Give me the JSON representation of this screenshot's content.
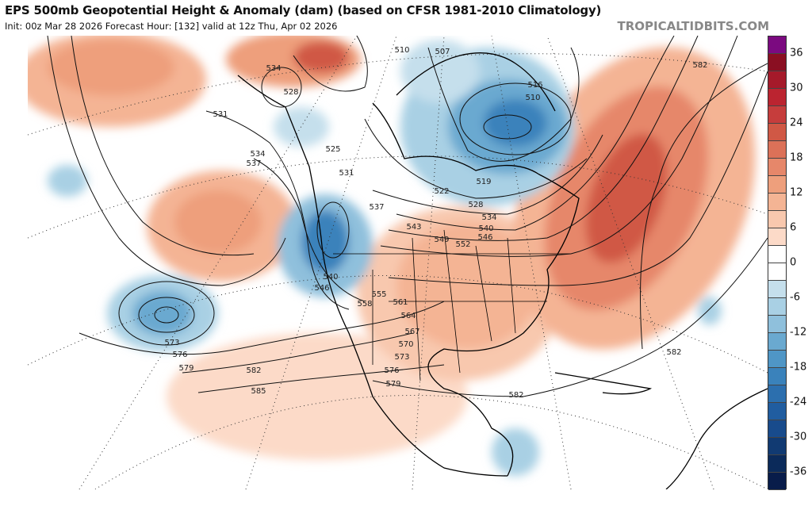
{
  "header": {
    "title": "EPS 500mb Geopotential Height & Anomaly (dam) (based on CFSR 1981-2010 Climatology)",
    "subtitle": "Init: 00z Mar 28 2026   Forecast Hour: [132]   valid at 12z Thu, Apr 02 2026",
    "brand": "TROPICALTIDBITS.COM"
  },
  "colorbar": {
    "labels": [
      "36",
      "30",
      "24",
      "18",
      "12",
      "6",
      "0",
      "-6",
      "-12",
      "-18",
      "-24",
      "-30",
      "-36"
    ],
    "colors": [
      "#7b0a80",
      "#8a0f22",
      "#a51a2a",
      "#bb2430",
      "#c63d3c",
      "#d05845",
      "#dc7158",
      "#e6876a",
      "#ee9f7c",
      "#f4b494",
      "#f8c8ae",
      "#fcdac8",
      "#ffffff",
      "#ffffff",
      "#c5dfec",
      "#a9d0e4",
      "#8fc0dc",
      "#6aa9d0",
      "#4f96c6",
      "#3a82bb",
      "#2c6fae",
      "#205da0",
      "#184b8c",
      "#113a72",
      "#0b2a5a",
      "#081c4a"
    ]
  },
  "contour_labels": [
    "534",
    "528",
    "531",
    "534",
    "537",
    "525",
    "531",
    "537",
    "510",
    "507",
    "516",
    "510",
    "522",
    "519",
    "528",
    "534",
    "540",
    "546",
    "543",
    "549",
    "552",
    "540",
    "546",
    "558",
    "555",
    "561",
    "564",
    "567",
    "570",
    "573",
    "576",
    "579",
    "573",
    "576",
    "579",
    "582",
    "585",
    "582",
    "582",
    "582"
  ]
}
